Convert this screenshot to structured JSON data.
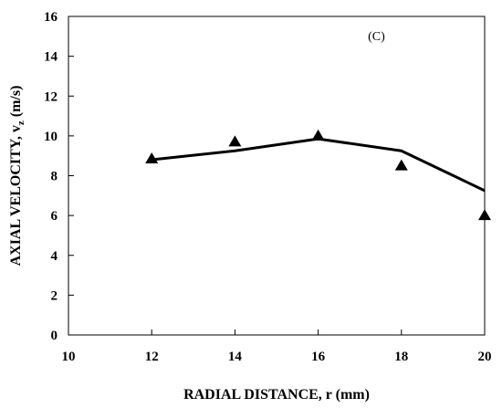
{
  "chart_data": {
    "type": "line",
    "panel_label": "(C)",
    "xlabel": "RADIAL DISTANCE, r (mm)",
    "ylabel_main": "AXIAL VELOCITY, v",
    "ylabel_sub": "z",
    "ylabel_unit": " (m/s)",
    "xlim": [
      10,
      20
    ],
    "ylim": [
      0,
      16
    ],
    "x_ticks": [
      10,
      12,
      14,
      16,
      18,
      20
    ],
    "y_ticks": [
      0,
      2,
      4,
      6,
      8,
      10,
      12,
      14,
      16
    ],
    "grid": false,
    "legend": "none",
    "series": [
      {
        "style": "line",
        "color": "#000000",
        "x": [
          12,
          14,
          16,
          18,
          20
        ],
        "y": [
          8.8,
          9.25,
          9.85,
          9.25,
          7.25
        ]
      },
      {
        "style": "triangle-markers",
        "color": "#000000",
        "x": [
          12,
          14,
          16,
          18,
          20
        ],
        "y": [
          8.85,
          9.7,
          10.0,
          8.5,
          6.0
        ]
      }
    ]
  }
}
